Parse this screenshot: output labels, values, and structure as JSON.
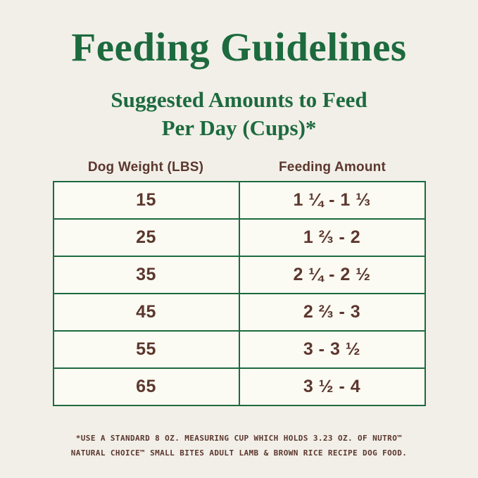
{
  "colors": {
    "green": "#1d6a3e",
    "brown": "#5c372e",
    "background": "#f1efe8",
    "table_background": "#fbfaf3"
  },
  "header": {
    "title": "Feeding Guidelines",
    "subtitle_line1": "Suggested Amounts to Feed",
    "subtitle_line2": "Per Day (Cups)*"
  },
  "chart_data": {
    "type": "table",
    "title": "Feeding Guidelines",
    "subtitle": "Suggested Amounts to Feed Per Day (Cups)*",
    "columns": [
      "Dog Weight (LBS)",
      "Feeding Amount"
    ],
    "rows": [
      [
        "15",
        "1 ¼ - 1 ⅓"
      ],
      [
        "25",
        "1 ⅔ - 2"
      ],
      [
        "35",
        "2 ¼ - 2 ½"
      ],
      [
        "45",
        "2 ⅔ - 3"
      ],
      [
        "55",
        "3 - 3 ½"
      ],
      [
        "65",
        "3 ½ - 4"
      ]
    ],
    "footnote_line1": "*USE A STANDARD 8 OZ. MEASURING CUP WHICH HOLDS 3.23 OZ. OF NUTRO™",
    "footnote_line2": "NATURAL CHOICE™ SMALL BITES ADULT LAMB & BROWN RICE RECIPE DOG FOOD.",
    "legend_position": "none",
    "grid": true
  }
}
